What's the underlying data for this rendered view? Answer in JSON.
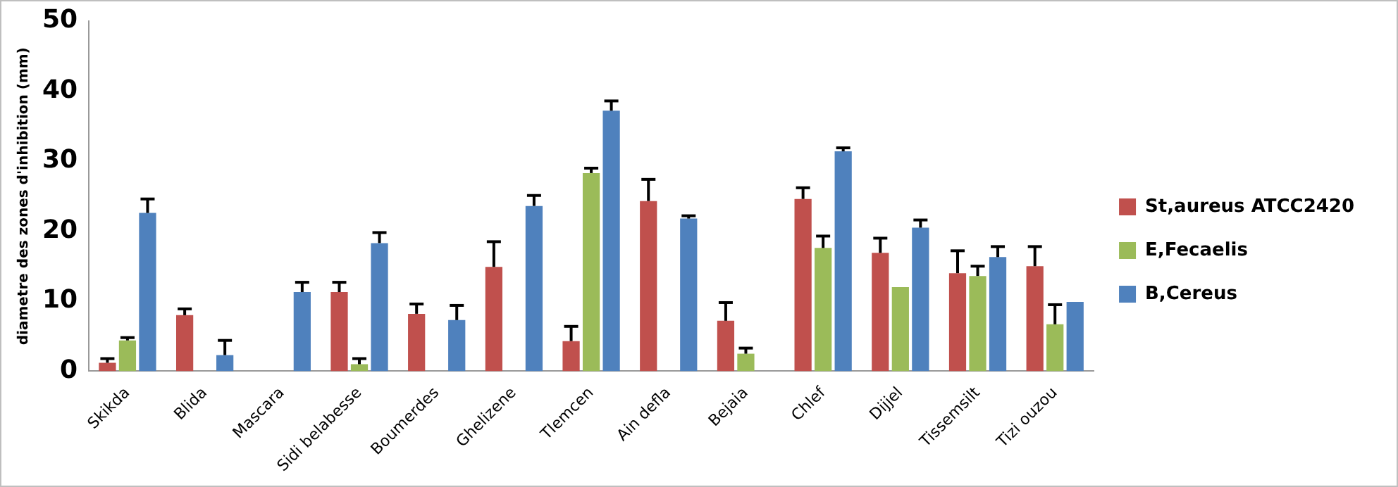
{
  "chart_data": {
    "type": "bar",
    "ylabel": "diametre des zones d'inhibition (mm)",
    "categories": [
      "Skikda",
      "Blida",
      "Mascara",
      "Sidi belabesse",
      "Boumerdes",
      "Ghelizene",
      "Tlemcen",
      "Ain defla",
      "Bejaia",
      "Chlef",
      "Dijjel",
      "Tissemsilt",
      "Tizi ouzou"
    ],
    "series": [
      {
        "name": "St,aureus ATCC2420",
        "color": "#c0504d",
        "values": [
          1.2,
          8.0,
          null,
          11.3,
          8.2,
          14.9,
          4.3,
          24.3,
          7.2,
          24.6,
          16.9,
          14.0,
          15.0
        ],
        "errors": [
          [
            1.2,
            1.8
          ],
          [
            8.0,
            8.9
          ],
          null,
          [
            11.3,
            12.7
          ],
          [
            8.2,
            9.6
          ],
          [
            14.9,
            18.5
          ],
          [
            4.3,
            6.4
          ],
          [
            24.3,
            27.4
          ],
          [
            7.2,
            9.8
          ],
          [
            24.6,
            26.2
          ],
          [
            16.9,
            19.0
          ],
          [
            14.0,
            17.2
          ],
          [
            15.0,
            17.8
          ]
        ]
      },
      {
        "name": "E,Fecaelis",
        "color": "#9bbb59",
        "values": [
          4.4,
          null,
          null,
          1.0,
          null,
          null,
          28.3,
          null,
          2.5,
          17.6,
          12.0,
          13.6,
          6.7
        ],
        "errors": [
          [
            4.4,
            4.8
          ],
          null,
          null,
          [
            1.0,
            1.8
          ],
          null,
          null,
          [
            28.3,
            29.0
          ],
          null,
          [
            2.5,
            3.3
          ],
          [
            17.6,
            19.3
          ],
          null,
          [
            13.6,
            15.0
          ],
          [
            6.7,
            9.5
          ]
        ]
      },
      {
        "name": "B,Cereus",
        "color": "#4f81bd",
        "values": [
          22.6,
          2.3,
          11.3,
          18.3,
          7.3,
          23.6,
          37.2,
          21.8,
          null,
          31.4,
          20.5,
          16.3,
          9.9
        ],
        "errors": [
          [
            22.6,
            24.6
          ],
          [
            2.3,
            4.4
          ],
          [
            11.3,
            12.7
          ],
          [
            18.3,
            19.8
          ],
          [
            7.3,
            9.4
          ],
          [
            23.6,
            25.1
          ],
          [
            37.2,
            38.6
          ],
          [
            21.8,
            22.2
          ],
          null,
          [
            31.4,
            31.9
          ],
          [
            20.5,
            21.6
          ],
          [
            16.3,
            17.8
          ],
          null
        ]
      }
    ],
    "ylim": [
      0,
      50
    ],
    "yticks": [
      0,
      10,
      20,
      30,
      40,
      50
    ],
    "grid": false,
    "legend": "right"
  }
}
